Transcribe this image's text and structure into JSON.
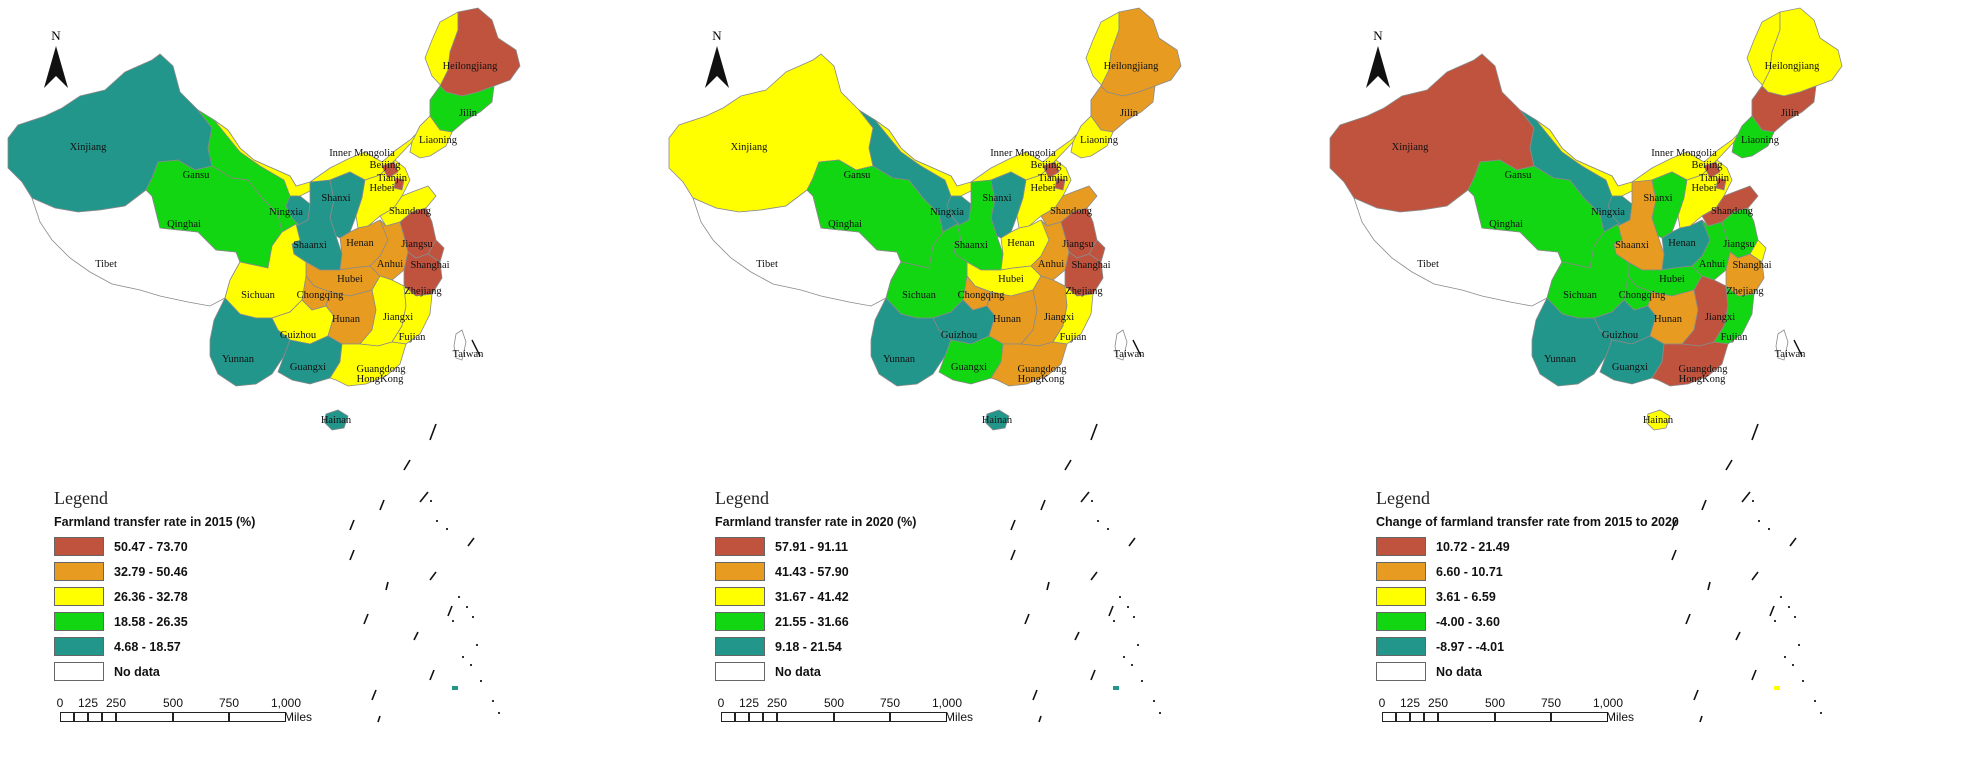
{
  "colors": {
    "c5": "#c0533e",
    "c4": "#e79c21",
    "c3": "#ffff00",
    "c2": "#11d611",
    "c1": "#22968b",
    "nodata": "#ffffff",
    "border": "#8a8a8a"
  },
  "north_label": "N",
  "panels": [
    {
      "legend_title": "Legend",
      "legend_subtitle": "Farmland transfer rate in 2015 (%)",
      "classes": [
        "50.47 - 73.70",
        "32.79 - 50.46",
        "26.36 - 32.78",
        "18.58 - 26.35",
        "4.68 - 18.57"
      ],
      "nodata_label": "No data",
      "provinces": {
        "Xinjiang": 1,
        "Tibet": 0,
        "Qinghai": 2,
        "Gansu": 2,
        "InnerMongolia": 3,
        "Heilongjiang": 5,
        "Jilin": 2,
        "Liaoning": 3,
        "Ningxia": 1,
        "Shaanxi": 1,
        "Shanxi": 1,
        "Hebei": 3,
        "Beijing": 5,
        "Tianjin": 5,
        "Shandong": 3,
        "Henan": 4,
        "Hubei": 4,
        "Anhui": 4,
        "Jiangsu": 5,
        "Shanghai": 5,
        "Zhejiang": 5,
        "Sichuan": 3,
        "Chongqing": 4,
        "Guizhou": 3,
        "Hunan": 4,
        "Jiangxi": 3,
        "Fujian": 3,
        "Yunnan": 1,
        "Guangxi": 1,
        "Guangdong": 3,
        "Hainan": 1,
        "Taiwan": 0
      }
    },
    {
      "legend_title": "Legend",
      "legend_subtitle": "Farmland transfer rate in 2020 (%)",
      "classes": [
        "57.91 - 91.11",
        "41.43 - 57.90",
        "31.67 - 41.42",
        "21.55 - 31.66",
        "9.18 - 21.54"
      ],
      "nodata_label": "No data",
      "provinces": {
        "Xinjiang": 3,
        "Tibet": 0,
        "Qinghai": 2,
        "Gansu": 1,
        "InnerMongolia": 3,
        "Heilongjiang": 4,
        "Jilin": 4,
        "Liaoning": 3,
        "Ningxia": 1,
        "Shaanxi": 2,
        "Shanxi": 1,
        "Hebei": 3,
        "Beijing": 5,
        "Tianjin": 5,
        "Shandong": 4,
        "Henan": 3,
        "Hubei": 3,
        "Anhui": 4,
        "Jiangsu": 5,
        "Shanghai": 5,
        "Zhejiang": 5,
        "Sichuan": 2,
        "Chongqing": 4,
        "Guizhou": 1,
        "Hunan": 4,
        "Jiangxi": 4,
        "Fujian": 3,
        "Yunnan": 1,
        "Guangxi": 2,
        "Guangdong": 4,
        "Hainan": 1,
        "Taiwan": 0
      }
    },
    {
      "legend_title": "Legend",
      "legend_subtitle": "Change of farmland transfer rate from 2015 to 2020",
      "classes": [
        "10.72 - 21.49",
        "6.60 - 10.71",
        "3.61 - 6.59",
        "-4.00 - 3.60",
        "-8.97 - -4.01"
      ],
      "nodata_label": "No data",
      "provinces": {
        "Xinjiang": 5,
        "Tibet": 0,
        "Qinghai": 2,
        "Gansu": 1,
        "InnerMongolia": 3,
        "Heilongjiang": 3,
        "Jilin": 5,
        "Liaoning": 2,
        "Ningxia": 1,
        "Shaanxi": 4,
        "Shanxi": 2,
        "Hebei": 3,
        "Beijing": 5,
        "Tianjin": 5,
        "Shandong": 5,
        "Henan": 1,
        "Hubei": 2,
        "Anhui": 2,
        "Jiangsu": 2,
        "Shanghai": 3,
        "Zhejiang": 4,
        "Sichuan": 2,
        "Chongqing": 2,
        "Guizhou": 1,
        "Hunan": 4,
        "Jiangxi": 5,
        "Fujian": 2,
        "Yunnan": 1,
        "Guangxi": 1,
        "Guangdong": 5,
        "Hainan": 3,
        "Taiwan": 0
      }
    }
  ],
  "labels": {
    "Xinjiang": "Xinjiang",
    "Tibet": "Tibet",
    "Qinghai": "Qinghai",
    "Gansu": "Gansu",
    "InnerMongolia": "Inner Mongolia",
    "Heilongjiang": "Heilongjiang",
    "Jilin": "Jilin",
    "Liaoning": "Liaoning",
    "Ningxia": "Ningxia",
    "Shaanxi": "Shaanxi",
    "Shanxi": "Shanxi",
    "Hebei": "Hebei",
    "Beijing": "Beijing",
    "Tianjin": "Tianjin",
    "Shandong": "Shandong",
    "Henan": "Henan",
    "Hubei": "Hubei",
    "Anhui": "Anhui",
    "Jiangsu": "Jiangsu",
    "Shanghai": "Shanghai",
    "Zhejiang": "Zhejiang",
    "Sichuan": "Sichuan",
    "Chongqing": "Chongqing",
    "Guizhou": "Guizhou",
    "Hunan": "Hunan",
    "Jiangxi": "Jiangxi",
    "Fujian": "Fujian",
    "Yunnan": "Yunnan",
    "Guangxi": "Guangxi",
    "Guangdong": "Guangdong",
    "HongKong": "HongKong",
    "Hainan": "Hainan",
    "Taiwan": "Taiwan"
  },
  "scale_bar": {
    "ticks": [
      "0",
      "125",
      "250",
      "500",
      "750",
      "1,000"
    ],
    "unit": "Miles"
  }
}
